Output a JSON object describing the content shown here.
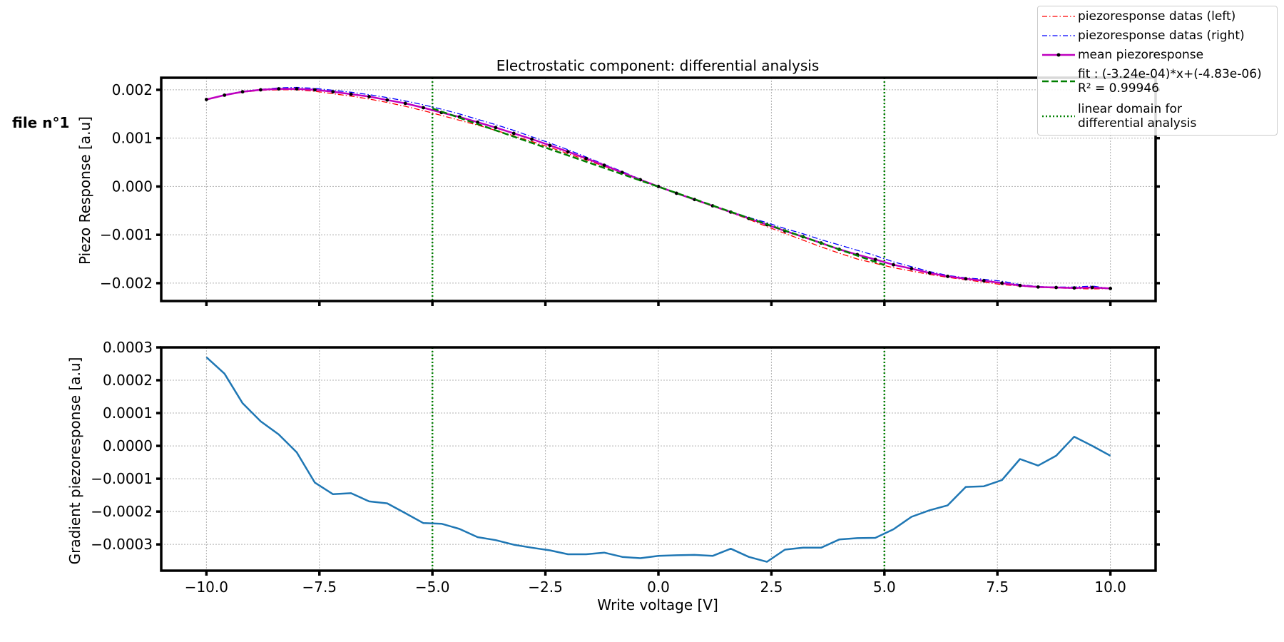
{
  "figure_label": "file n°1",
  "colors": {
    "left": "#ff0000",
    "right": "#0000ff",
    "mean": "#bf00bf",
    "fit": "#007f00",
    "domain": "#008000",
    "gradient": "#1f77b4"
  },
  "chart_data": [
    {
      "type": "line",
      "title": "Electrostatic component: differential analysis",
      "xlabel": "",
      "ylabel": "Piezo Response [a.u]",
      "xlim": [
        -11,
        11
      ],
      "ylim": [
        -0.00237,
        0.00225
      ],
      "grid": true,
      "legend_position": "top-right",
      "x_ticks": [
        -10,
        -7.5,
        -5,
        -2.5,
        0,
        2.5,
        5,
        7.5,
        10
      ],
      "y_ticks": [
        -0.002,
        -0.001,
        0,
        0.001,
        0.002
      ],
      "y_tick_labels": [
        "−0.002",
        "−0.001",
        "0.000",
        "0.001",
        "0.002"
      ],
      "x": [
        -10,
        -9.6,
        -9.2,
        -8.8,
        -8.4,
        -8.0,
        -7.6,
        -7.2,
        -6.8,
        -6.4,
        -6.0,
        -5.6,
        -5.2,
        -4.8,
        -4.4,
        -4.0,
        -3.6,
        -3.2,
        -2.8,
        -2.4,
        -2.0,
        -1.6,
        -1.2,
        -0.8,
        -0.4,
        0.0,
        0.4,
        0.8,
        1.2,
        1.6,
        2.0,
        2.4,
        2.8,
        3.2,
        3.6,
        4.0,
        4.4,
        4.8,
        5.2,
        5.6,
        6.0,
        6.4,
        6.8,
        7.2,
        7.6,
        8.0,
        8.4,
        8.8,
        9.2,
        9.6,
        10.0
      ],
      "series": [
        {
          "name": "piezoresponse datas (left)",
          "values": [
            0.0018,
            0.00189,
            0.00195,
            0.00199,
            0.002,
            0.002,
            0.00197,
            0.00192,
            0.00187,
            0.00181,
            0.00174,
            0.00166,
            0.00157,
            0.00147,
            0.00137,
            0.00127,
            0.00116,
            0.00105,
            0.00093,
            0.00081,
            0.00068,
            0.00055,
            0.00042,
            0.00028,
            0.00014,
            0.0,
            -0.00014,
            -0.00028,
            -0.00041,
            -0.00054,
            -0.00068,
            -0.00083,
            -0.00097,
            -0.00111,
            -0.00125,
            -0.00138,
            -0.0015,
            -0.00159,
            -0.00168,
            -0.00175,
            -0.00182,
            -0.00188,
            -0.00193,
            -0.00198,
            -0.00203,
            -0.00206,
            -0.00209,
            -0.0021,
            -0.00211,
            -0.00212,
            -0.00211
          ]
        },
        {
          "name": "piezoresponse datas (right)",
          "values": [
            0.0018,
            0.0019,
            0.00197,
            0.00201,
            0.00204,
            0.00205,
            0.00203,
            0.00199,
            0.00195,
            0.0019,
            0.00184,
            0.00177,
            0.00169,
            0.0016,
            0.0015,
            0.00139,
            0.00128,
            0.00116,
            0.00103,
            0.0009,
            0.00076,
            0.00061,
            0.00046,
            0.00031,
            0.00015,
            0.0,
            -0.00014,
            -0.00027,
            -0.0004,
            -0.00052,
            -0.00064,
            -0.00075,
            -0.00087,
            -0.00098,
            -0.0011,
            -0.00121,
            -0.00132,
            -0.00143,
            -0.00156,
            -0.00166,
            -0.00176,
            -0.00184,
            -0.00189,
            -0.00192,
            -0.00196,
            -0.00203,
            -0.00207,
            -0.00208,
            -0.00208,
            -0.00206,
            -0.00211
          ]
        },
        {
          "name": "mean piezoresponse",
          "values": [
            0.0018,
            0.00189,
            0.00196,
            0.002,
            0.00202,
            0.00202,
            0.002,
            0.00196,
            0.00191,
            0.00186,
            0.00179,
            0.00172,
            0.00163,
            0.00153,
            0.00144,
            0.00133,
            0.00122,
            0.0011,
            0.00098,
            0.00085,
            0.00072,
            0.00058,
            0.00044,
            0.00029,
            0.00014,
            0.0,
            -0.00014,
            -0.00027,
            -0.0004,
            -0.00053,
            -0.00066,
            -0.00079,
            -0.00092,
            -0.00104,
            -0.00117,
            -0.0013,
            -0.00141,
            -0.00151,
            -0.00162,
            -0.0017,
            -0.00179,
            -0.00186,
            -0.00191,
            -0.00195,
            -0.002,
            -0.00205,
            -0.00208,
            -0.00209,
            -0.0021,
            -0.00209,
            -0.00211
          ]
        },
        {
          "name": "fit : (-3.24e-04)*x+(-4.83e-06)\nR² = 0.99946",
          "x_range": [
            -5,
            5
          ],
          "slope": -0.000324,
          "intercept": -4.83e-06
        },
        {
          "name": "linear domain for\ndifferential analysis",
          "x_positions": [
            -5,
            5
          ]
        }
      ]
    },
    {
      "type": "line",
      "title": "",
      "xlabel": "Write voltage [V]",
      "ylabel": "Gradient piezoresponse [a.u]",
      "xlim": [
        -11,
        11
      ],
      "ylim": [
        -0.00038,
        0.0003
      ],
      "grid": true,
      "x_ticks": [
        -10,
        -7.5,
        -5,
        -2.5,
        0,
        2.5,
        5,
        7.5,
        10
      ],
      "x_tick_labels": [
        "−10.0",
        "−7.5",
        "−5.0",
        "−2.5",
        "0.0",
        "2.5",
        "5.0",
        "7.5",
        "10.0"
      ],
      "y_ticks": [
        -0.0003,
        -0.0002,
        -0.0001,
        0,
        0.0001,
        0.0002,
        0.0003
      ],
      "y_tick_labels": [
        "−0.0003",
        "−0.0002",
        "−0.0001",
        "0.0000",
        "0.0001",
        "0.0002",
        "0.0003"
      ],
      "x": [
        -10,
        -9.6,
        -9.2,
        -8.8,
        -8.4,
        -8.0,
        -7.6,
        -7.2,
        -6.8,
        -6.4,
        -6.0,
        -5.6,
        -5.2,
        -4.8,
        -4.4,
        -4.0,
        -3.6,
        -3.2,
        -2.8,
        -2.4,
        -2.0,
        -1.6,
        -1.2,
        -0.8,
        -0.4,
        0.0,
        0.4,
        0.8,
        1.2,
        1.6,
        2.0,
        2.4,
        2.8,
        3.2,
        3.6,
        4.0,
        4.4,
        4.8,
        5.2,
        5.6,
        6.0,
        6.4,
        6.8,
        7.2,
        7.6,
        8.0,
        8.4,
        8.8,
        9.2,
        9.6,
        10.0
      ],
      "series": [
        {
          "values": [
            0.00027,
            0.00022,
            0.00013,
            7.5e-05,
            3.5e-05,
            -2e-05,
            -0.000112,
            -0.000147,
            -0.000144,
            -0.000169,
            -0.000175,
            -0.000205,
            -0.000235,
            -0.000237,
            -0.000253,
            -0.000278,
            -0.000287,
            -0.000301,
            -0.00031,
            -0.000318,
            -0.00033,
            -0.00033,
            -0.000325,
            -0.000338,
            -0.000342,
            -0.000335,
            -0.000333,
            -0.000332,
            -0.000335,
            -0.000313,
            -0.000338,
            -0.000353,
            -0.000316,
            -0.00031,
            -0.00031,
            -0.000285,
            -0.000281,
            -0.00028,
            -0.000254,
            -0.000216,
            -0.000196,
            -0.000181,
            -0.000125,
            -0.000123,
            -0.000104,
            -4e-05,
            -6e-05,
            -3e-05,
            2.8e-05,
            0.0,
            -3e-05
          ]
        }
      ]
    }
  ]
}
